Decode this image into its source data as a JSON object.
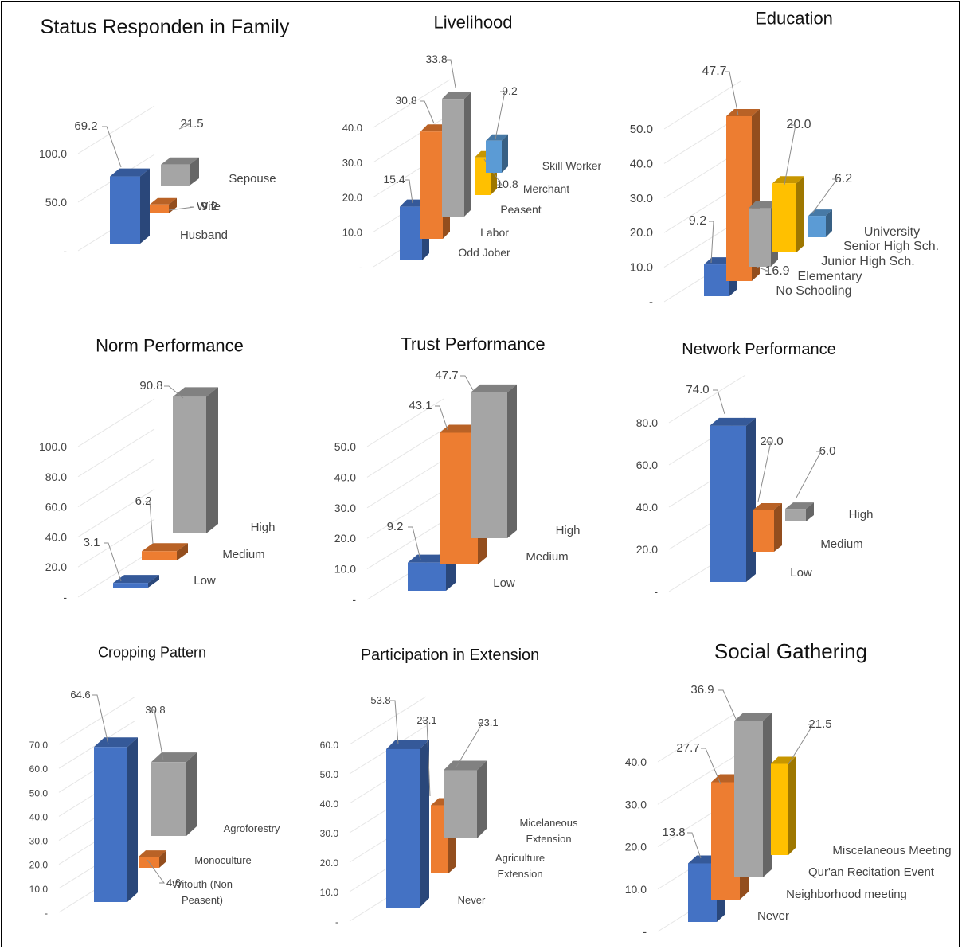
{
  "colors": {
    "blue": "#4472c4",
    "orange": "#ed7d31",
    "gray": "#a5a5a5",
    "yellow": "#ffc000",
    "lightblue": "#5b9bd5"
  },
  "chart_data": [
    {
      "type": "bar",
      "title": "Status Responden in Family",
      "yticks": [
        "100.0",
        "50.0",
        "-"
      ],
      "ylim": [
        0,
        100
      ],
      "series": [
        {
          "name": "Husband",
          "value": 69.2,
          "color": "blue",
          "label": "69.2"
        },
        {
          "name": "Wife",
          "value": 9.2,
          "color": "orange",
          "label": "9.2"
        },
        {
          "name": "Sepouse",
          "value": 21.5,
          "color": "gray",
          "label": "21.5"
        }
      ]
    },
    {
      "type": "bar",
      "title": "Livelihood",
      "yticks": [
        "40.0",
        "30.0",
        "20.0",
        "10.0",
        "-"
      ],
      "ylim": [
        0,
        40
      ],
      "series": [
        {
          "name": "Odd Jober",
          "value": 15.4,
          "color": "blue",
          "label": "15.4"
        },
        {
          "name": "Labor",
          "value": 30.8,
          "color": "orange",
          "label": "30.8"
        },
        {
          "name": "Peasent",
          "value": 33.8,
          "color": "gray",
          "label": "33.8"
        },
        {
          "name": "Merchant",
          "value": 10.8,
          "color": "yellow",
          "label": "10.8"
        },
        {
          "name": "Skill Worker",
          "value": 9.2,
          "color": "lightblue",
          "label": "9.2"
        }
      ]
    },
    {
      "type": "bar",
      "title": "Education",
      "yticks": [
        "50.0",
        "40.0",
        "30.0",
        "20.0",
        "10.0",
        "-"
      ],
      "ylim": [
        0,
        50
      ],
      "series": [
        {
          "name": "No Schooling",
          "value": 9.2,
          "color": "blue",
          "label": "9.2"
        },
        {
          "name": "Elementary",
          "value": 47.7,
          "color": "orange",
          "label": "47.7"
        },
        {
          "name": "Junior High Sch.",
          "value": 16.9,
          "color": "gray",
          "label": "16.9"
        },
        {
          "name": "Senior High Sch.",
          "value": 20.0,
          "color": "yellow",
          "label": "20.0"
        },
        {
          "name": "University",
          "value": 6.2,
          "color": "lightblue",
          "label": "6.2"
        }
      ]
    },
    {
      "type": "bar",
      "title": "Norm Performance",
      "yticks": [
        "100.0",
        "80.0",
        "60.0",
        "40.0",
        "20.0",
        "-"
      ],
      "ylim": [
        0,
        100
      ],
      "series": [
        {
          "name": "Low",
          "value": 3.1,
          "color": "blue",
          "label": "3.1"
        },
        {
          "name": "Medium",
          "value": 6.2,
          "color": "orange",
          "label": "6.2"
        },
        {
          "name": "High",
          "value": 90.8,
          "color": "gray",
          "label": "90.8"
        }
      ]
    },
    {
      "type": "bar",
      "title": "Trust Performance",
      "yticks": [
        "50.0",
        "40.0",
        "30.0",
        "20.0",
        "10.0",
        "-"
      ],
      "ylim": [
        0,
        50
      ],
      "series": [
        {
          "name": "Low",
          "value": 9.2,
          "color": "blue",
          "label": "9.2"
        },
        {
          "name": "Medium",
          "value": 43.1,
          "color": "orange",
          "label": "43.1"
        },
        {
          "name": "High",
          "value": 47.7,
          "color": "gray",
          "label": "47.7"
        }
      ]
    },
    {
      "type": "bar",
      "title": "Network Performance",
      "yticks": [
        "80.0",
        "60.0",
        "40.0",
        "20.0",
        "-"
      ],
      "ylim": [
        0,
        80
      ],
      "series": [
        {
          "name": "Low",
          "value": 74.0,
          "color": "blue",
          "label": "74.0"
        },
        {
          "name": "Medium",
          "value": 20.0,
          "color": "orange",
          "label": "20.0"
        },
        {
          "name": "High",
          "value": 6.0,
          "color": "gray",
          "label": "6.0"
        }
      ]
    },
    {
      "type": "bar",
      "title": "Cropping Pattern",
      "yticks": [
        "70.0",
        "60.0",
        "50.0",
        "40.0",
        "30.0",
        "20.0",
        "10.0",
        "-"
      ],
      "ylim": [
        0,
        70
      ],
      "series": [
        {
          "name": "Witouth (Non Peasent)",
          "value": 64.6,
          "color": "blue",
          "label": "64.6"
        },
        {
          "name": "Monoculture",
          "value": 4.6,
          "color": "orange",
          "label": "4.6"
        },
        {
          "name": "Agroforestry",
          "value": 30.8,
          "color": "gray",
          "label": "30.8"
        }
      ]
    },
    {
      "type": "bar",
      "title": "Participation in Extension",
      "yticks": [
        "60.0",
        "50.0",
        "40.0",
        "30.0",
        "20.0",
        "10.0",
        "-"
      ],
      "ylim": [
        0,
        60
      ],
      "series": [
        {
          "name": "Never",
          "value": 53.8,
          "color": "blue",
          "label": "53.8"
        },
        {
          "name": "Agriculture Extension",
          "value": 23.1,
          "color": "orange",
          "label": "23.1"
        },
        {
          "name": "Micelaneous Extension",
          "value": 23.1,
          "color": "gray",
          "label": "23.1"
        }
      ]
    },
    {
      "type": "bar",
      "title": "Social Gathering",
      "yticks": [
        "40.0",
        "30.0",
        "20.0",
        "10.0",
        "-"
      ],
      "ylim": [
        0,
        40
      ],
      "series": [
        {
          "name": "Never",
          "value": 13.8,
          "color": "blue",
          "label": "13.8"
        },
        {
          "name": "Neighborhood meeting",
          "value": 27.7,
          "color": "orange",
          "label": "27.7"
        },
        {
          "name": "Qur'an Recitation Event",
          "value": 36.9,
          "color": "gray",
          "label": "36.9"
        },
        {
          "name": "Miscelaneous Meeting",
          "value": 21.5,
          "color": "yellow",
          "label": "21.5"
        }
      ]
    }
  ]
}
